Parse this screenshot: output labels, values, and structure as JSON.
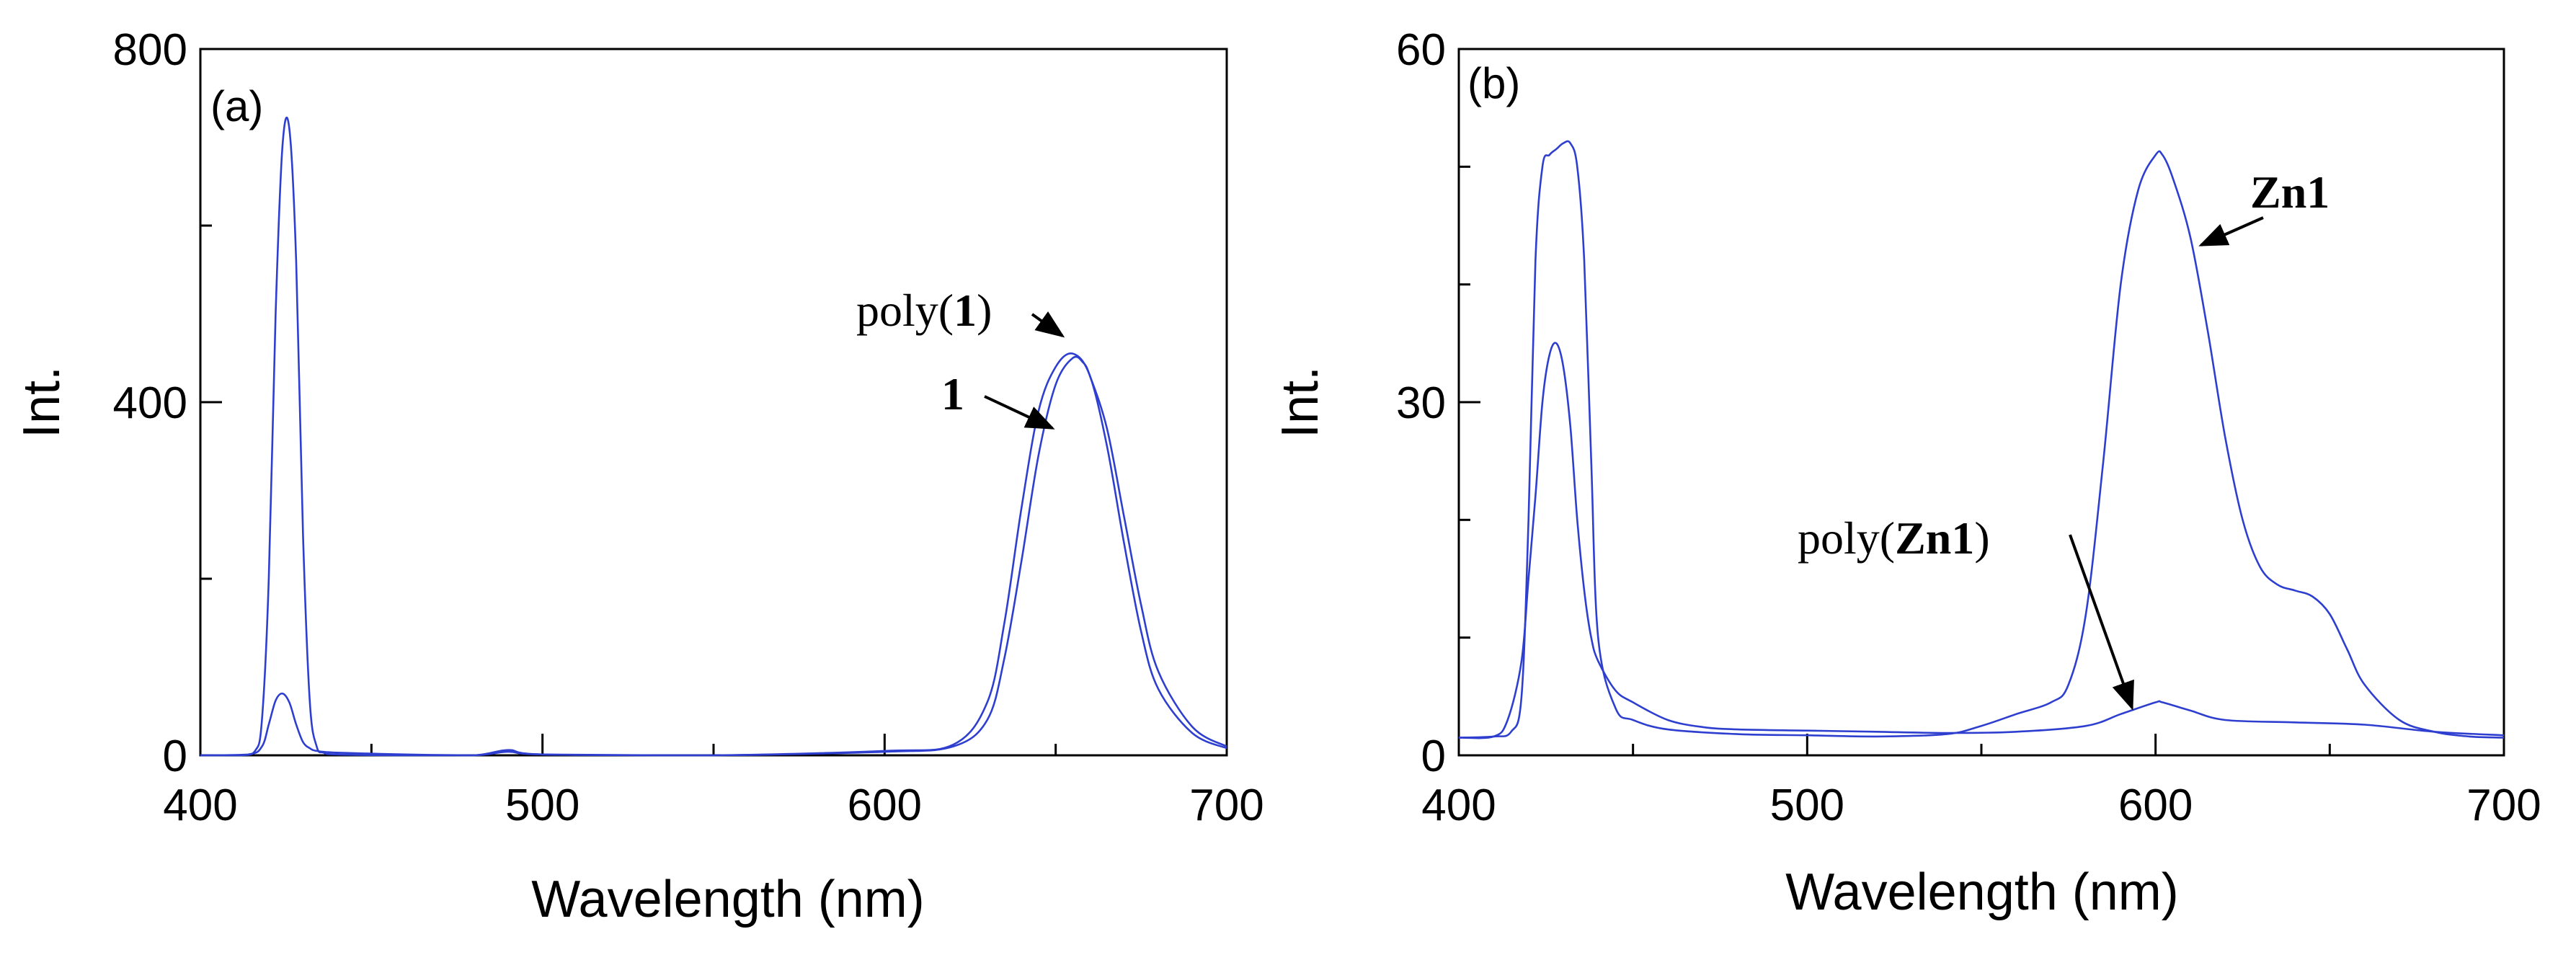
{
  "colors": {
    "line": "#2e3fd0",
    "axis": "#000000",
    "background": "#ffffff"
  },
  "chart_data": [
    {
      "type": "line",
      "panel_label": "(a)",
      "xlabel": "Wavelength (nm)",
      "ylabel": "Int.",
      "xlim": [
        400,
        700
      ],
      "ylim": [
        0,
        800
      ],
      "x_ticks": [
        400,
        500,
        600,
        700
      ],
      "x_minor_ticks": [
        450,
        550,
        650
      ],
      "y_ticks": [
        0,
        400,
        800
      ],
      "y_minor_ticks": [
        200,
        600
      ],
      "series": [
        {
          "name": "poly(1)",
          "x": [
            400,
            412,
            416,
            418,
            420,
            422,
            424,
            426,
            428,
            430,
            432,
            434,
            436,
            440,
            460,
            480,
            490,
            500,
            550,
            600,
            620,
            630,
            635,
            640,
            645,
            650,
            655,
            660,
            665,
            670,
            675,
            680,
            690,
            700
          ],
          "values": [
            0,
            0,
            5,
            40,
            200,
            500,
            690,
            710,
            560,
            250,
            60,
            10,
            3,
            1,
            0,
            0,
            6,
            1,
            0,
            5,
            12,
            60,
            150,
            280,
            390,
            440,
            455,
            430,
            350,
            240,
            140,
            75,
            25,
            8
          ]
        },
        {
          "name": "1",
          "x": [
            400,
            414,
            418,
            420,
            422,
            424,
            426,
            428,
            430,
            432,
            434,
            440,
            460,
            480,
            490,
            500,
            550,
            600,
            620,
            630,
            635,
            640,
            645,
            650,
            655,
            658,
            660,
            665,
            670,
            675,
            680,
            690,
            700
          ],
          "values": [
            0,
            1,
            10,
            35,
            62,
            70,
            60,
            35,
            15,
            8,
            5,
            3,
            1,
            0,
            4,
            1,
            0,
            4,
            10,
            40,
            110,
            220,
            340,
            420,
            450,
            445,
            430,
            370,
            270,
            170,
            95,
            32,
            10
          ]
        }
      ],
      "annotations": [
        {
          "text_prefix": "poly(",
          "text_bold": "1",
          "text_suffix": ")",
          "x": 650,
          "y": 465
        },
        {
          "text_bold": "1",
          "x": 652,
          "y": 368
        }
      ]
    },
    {
      "type": "line",
      "panel_label": "(b)",
      "xlabel": "Wavelength (nm)",
      "ylabel": "Int.",
      "xlim": [
        400,
        700
      ],
      "ylim": [
        0,
        60
      ],
      "x_ticks": [
        400,
        500,
        600,
        700
      ],
      "x_minor_ticks": [
        450,
        550,
        650
      ],
      "y_ticks": [
        0,
        30,
        60
      ],
      "y_minor_ticks": [
        10,
        20,
        40,
        50
      ],
      "series": [
        {
          "name": "Zn1",
          "x": [
            400,
            410,
            415,
            418,
            420,
            422,
            424,
            426,
            428,
            430,
            432,
            434,
            436,
            438,
            440,
            445,
            450,
            460,
            480,
            500,
            520,
            540,
            550,
            560,
            570,
            575,
            580,
            585,
            590,
            595,
            600,
            602,
            605,
            610,
            615,
            620,
            625,
            630,
            635,
            640,
            645,
            650,
            655,
            660,
            670,
            680,
            690,
            700
          ],
          "values": [
            1.5,
            1.6,
            2,
            5,
            20,
            42,
            50,
            51,
            51.5,
            52,
            52,
            50,
            42,
            25,
            10,
            4,
            3,
            2.2,
            1.8,
            1.7,
            1.6,
            1.8,
            2.5,
            3.5,
            4.5,
            6,
            12,
            25,
            40,
            48,
            51,
            51,
            49,
            44,
            36,
            27,
            20,
            16,
            14.5,
            14,
            13.5,
            12,
            9,
            6,
            3,
            2,
            1.6,
            1.5
          ]
        },
        {
          "name": "poly(Zn1)",
          "x": [
            400,
            410,
            414,
            418,
            420,
            422,
            424,
            426,
            428,
            430,
            432,
            434,
            436,
            438,
            440,
            445,
            450,
            460,
            470,
            480,
            500,
            520,
            540,
            560,
            580,
            590,
            600,
            602,
            610,
            620,
            640,
            660,
            680,
            700
          ],
          "values": [
            1.5,
            1.6,
            3,
            8,
            15,
            22,
            30,
            34,
            35,
            33,
            28,
            20,
            14,
            10,
            8,
            5.5,
            4.5,
            3,
            2.4,
            2.2,
            2.1,
            2,
            1.9,
            2,
            2.5,
            3.5,
            4.5,
            4.5,
            3.8,
            3,
            2.8,
            2.6,
            2,
            1.7
          ]
        }
      ],
      "annotations": [
        {
          "text_bold": "Zn1",
          "x": 608,
          "y": 45
        },
        {
          "text_prefix": "poly(",
          "text_bold": "Zn1",
          "text_suffix": ")",
          "x": 603,
          "y": 4.3
        }
      ]
    }
  ]
}
